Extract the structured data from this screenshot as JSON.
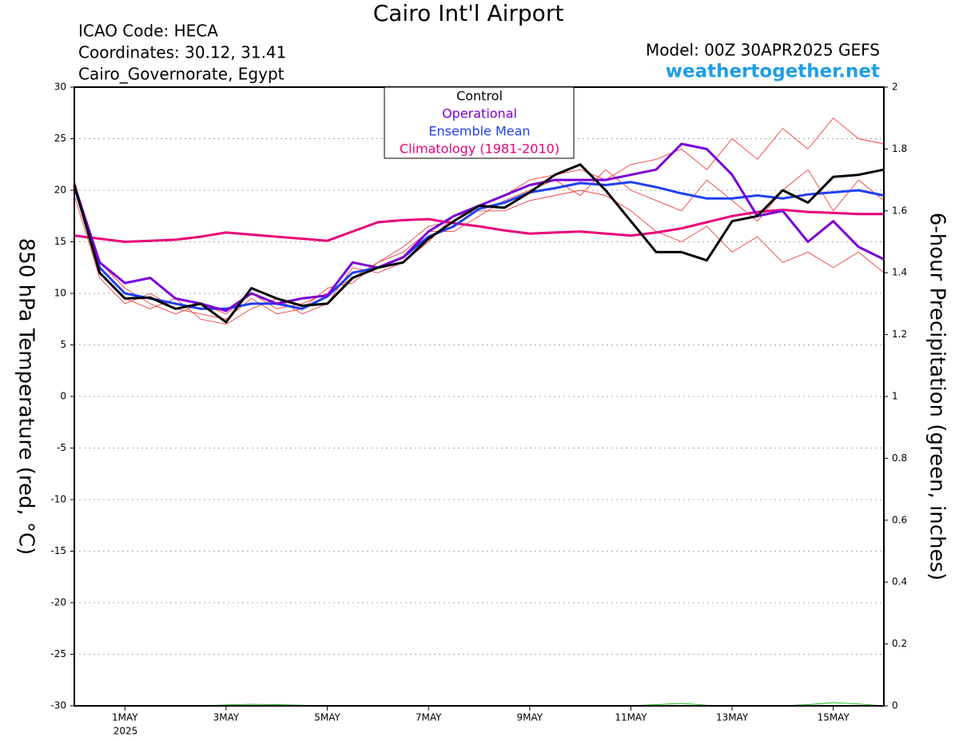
{
  "chart_data": {
    "type": "line",
    "title": "Cairo Int'l Airport",
    "annotations": [
      "ICAO Code: HECA",
      "Coordinates: 30.12, 31.41",
      "Cairo_Governorate, Egypt",
      "Model: 00Z 30APR2025 GEFS",
      "weathertogether.net",
      "2025"
    ],
    "y_label": "850 hPa Temperature (red, °C)",
    "y2_label": "6-hour Precipitation (green, inches)",
    "x": [
      0,
      12,
      24,
      36,
      48,
      60,
      72,
      84,
      96,
      108,
      120,
      132,
      144,
      156,
      168,
      180,
      192,
      204,
      216,
      228,
      240,
      252,
      264,
      276,
      288,
      300,
      312,
      324,
      336,
      348,
      360,
      372,
      384
    ],
    "xlim": [
      0,
      384
    ],
    "xticks": [
      {
        "value": 24,
        "label": "1MAY"
      },
      {
        "value": 72,
        "label": "3MAY"
      },
      {
        "value": 120,
        "label": "5MAY"
      },
      {
        "value": 168,
        "label": "7MAY"
      },
      {
        "value": 216,
        "label": "9MAY"
      },
      {
        "value": 264,
        "label": "11MAY"
      },
      {
        "value": 312,
        "label": "13MAY"
      },
      {
        "value": 360,
        "label": "15MAY"
      }
    ],
    "ylim": [
      -30,
      30
    ],
    "yticks": [
      -30,
      -25,
      -20,
      -15,
      -10,
      -5,
      0,
      5,
      10,
      15,
      20,
      25,
      30
    ],
    "y2lim": [
      0,
      2
    ],
    "y2ticks": [
      0,
      0.2,
      0.4,
      0.6,
      0.8,
      1,
      1.2,
      1.4,
      1.6,
      1.8,
      2
    ],
    "grid": true,
    "series": [
      {
        "color": "#f04040",
        "values": [
          20,
          13,
          10.5,
          9,
          8,
          9,
          8,
          10,
          8.5,
          9,
          10,
          11.5,
          13,
          14.5,
          16.5,
          17,
          18.5,
          19.5,
          21,
          21.5,
          22,
          21,
          22.5,
          23,
          24,
          22,
          25,
          23,
          26,
          24,
          27,
          25,
          24.5
        ]
      },
      {
        "color": "#f04040",
        "values": [
          21,
          12,
          9.5,
          8.5,
          9.5,
          7.5,
          7,
          8.5,
          9.5,
          8,
          9,
          12.5,
          12,
          13,
          15,
          17.5,
          18,
          18,
          19,
          19.5,
          20,
          19.5,
          18,
          16,
          15,
          16.5,
          14,
          15.5,
          13,
          14,
          12.5,
          14,
          12
        ]
      },
      {
        "color": "#f04040",
        "values": [
          19.5,
          11.5,
          9,
          10,
          8.5,
          8,
          7.5,
          9.5,
          8,
          8.5,
          10.5,
          11,
          13,
          14,
          16,
          16,
          17.5,
          19,
          20,
          21,
          19.5,
          22,
          20,
          19,
          18,
          21,
          19,
          17,
          20,
          22,
          18,
          21,
          19
        ]
      },
      {
        "color": "#00bb00",
        "axis": "y2",
        "values": [
          0,
          0,
          0,
          0,
          0,
          0,
          0.003,
          0.005,
          0.004,
          0.002,
          0,
          0,
          0,
          0,
          0,
          0,
          0,
          0,
          0,
          0,
          0,
          0,
          0,
          0.004,
          0.008,
          0.002,
          0,
          0,
          0,
          0.004,
          0.01,
          0.006,
          0
        ]
      },
      {
        "name": "Climatology (1981-2010)",
        "color": "#e8007a",
        "values": [
          15.6,
          15.3,
          15,
          15.1,
          15.2,
          15.5,
          15.9,
          15.7,
          15.5,
          15.3,
          15.1,
          16,
          16.9,
          17.1,
          17.2,
          16.8,
          16.5,
          16.1,
          15.8,
          15.9,
          16,
          15.8,
          15.6,
          15.9,
          16.3,
          16.9,
          17.5,
          17.9,
          18.1,
          17.9,
          17.8,
          17.7,
          17.7
        ]
      },
      {
        "name": "Ensemble Mean",
        "color": "#2040f0",
        "values": [
          20.3,
          12.5,
          10,
          9.5,
          9,
          8.5,
          8.5,
          9,
          9,
          8.5,
          9.7,
          12,
          12.5,
          13.5,
          15.5,
          16.5,
          18.2,
          18.8,
          19.8,
          20.2,
          20.7,
          20.5,
          20.8,
          20.3,
          19.7,
          19.2,
          19.2,
          19.5,
          19.2,
          19.6,
          19.8,
          20,
          19.5
        ]
      },
      {
        "name": "Operational",
        "color": "#7a00d6",
        "values": [
          20.5,
          13,
          11,
          11.5,
          9.5,
          9,
          8.3,
          10,
          9,
          9.5,
          9.8,
          13,
          12.5,
          13.5,
          16,
          17.5,
          18.5,
          19.5,
          20.5,
          21,
          21,
          21,
          21.5,
          22,
          24.5,
          24,
          21.5,
          17.5,
          18,
          15,
          17,
          14.5,
          13.3
        ]
      },
      {
        "name": "Control",
        "color": "#000000",
        "values": [
          20.5,
          12,
          9.5,
          9.6,
          8.5,
          9,
          7.2,
          10.5,
          9.5,
          8.8,
          9,
          11.5,
          12.5,
          13,
          15.3,
          17,
          18.5,
          18.3,
          19.8,
          21.5,
          22.5,
          20,
          17,
          14,
          14,
          13.2,
          17,
          17.5,
          20,
          18.8,
          21.3,
          21.5,
          22
        ]
      }
    ]
  }
}
